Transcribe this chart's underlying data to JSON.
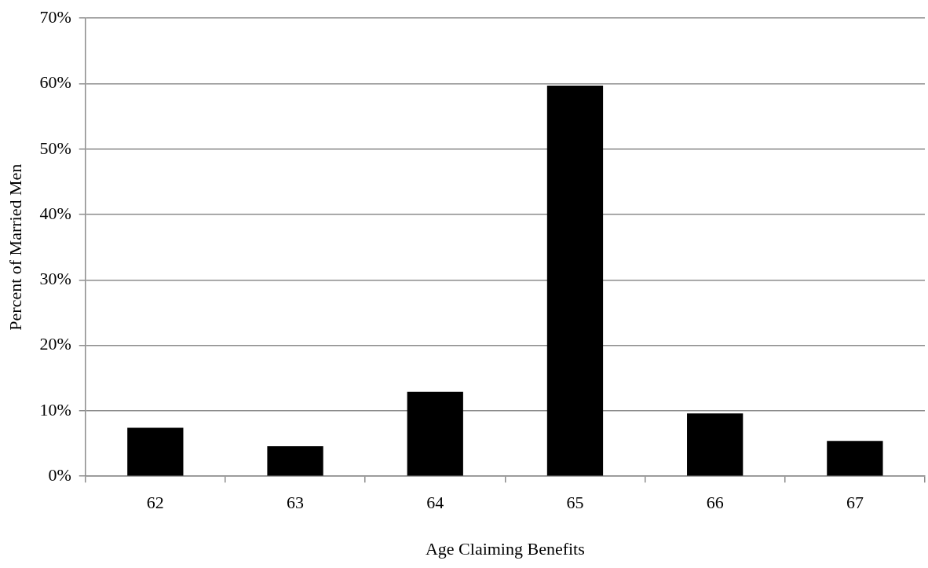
{
  "chart_data": {
    "type": "bar",
    "xlabel": "Age Claiming Benefits",
    "ylabel": "Percent of Married Men",
    "categories": [
      "62",
      "63",
      "64",
      "65",
      "66",
      "67"
    ],
    "values": [
      7.4,
      4.6,
      12.9,
      59.7,
      9.6,
      5.4
    ],
    "color": "#000000",
    "ylim": [
      0,
      70
    ],
    "yticks": [
      {
        "value": 0,
        "label": "0%"
      },
      {
        "value": 10,
        "label": "10%"
      },
      {
        "value": 20,
        "label": "20%"
      },
      {
        "value": 30,
        "label": "30%"
      },
      {
        "value": 40,
        "label": "40%"
      },
      {
        "value": 50,
        "label": "50%"
      },
      {
        "value": 60,
        "label": "60%"
      },
      {
        "value": 70,
        "label": "70%"
      }
    ],
    "grid": "y",
    "legend": false
  }
}
